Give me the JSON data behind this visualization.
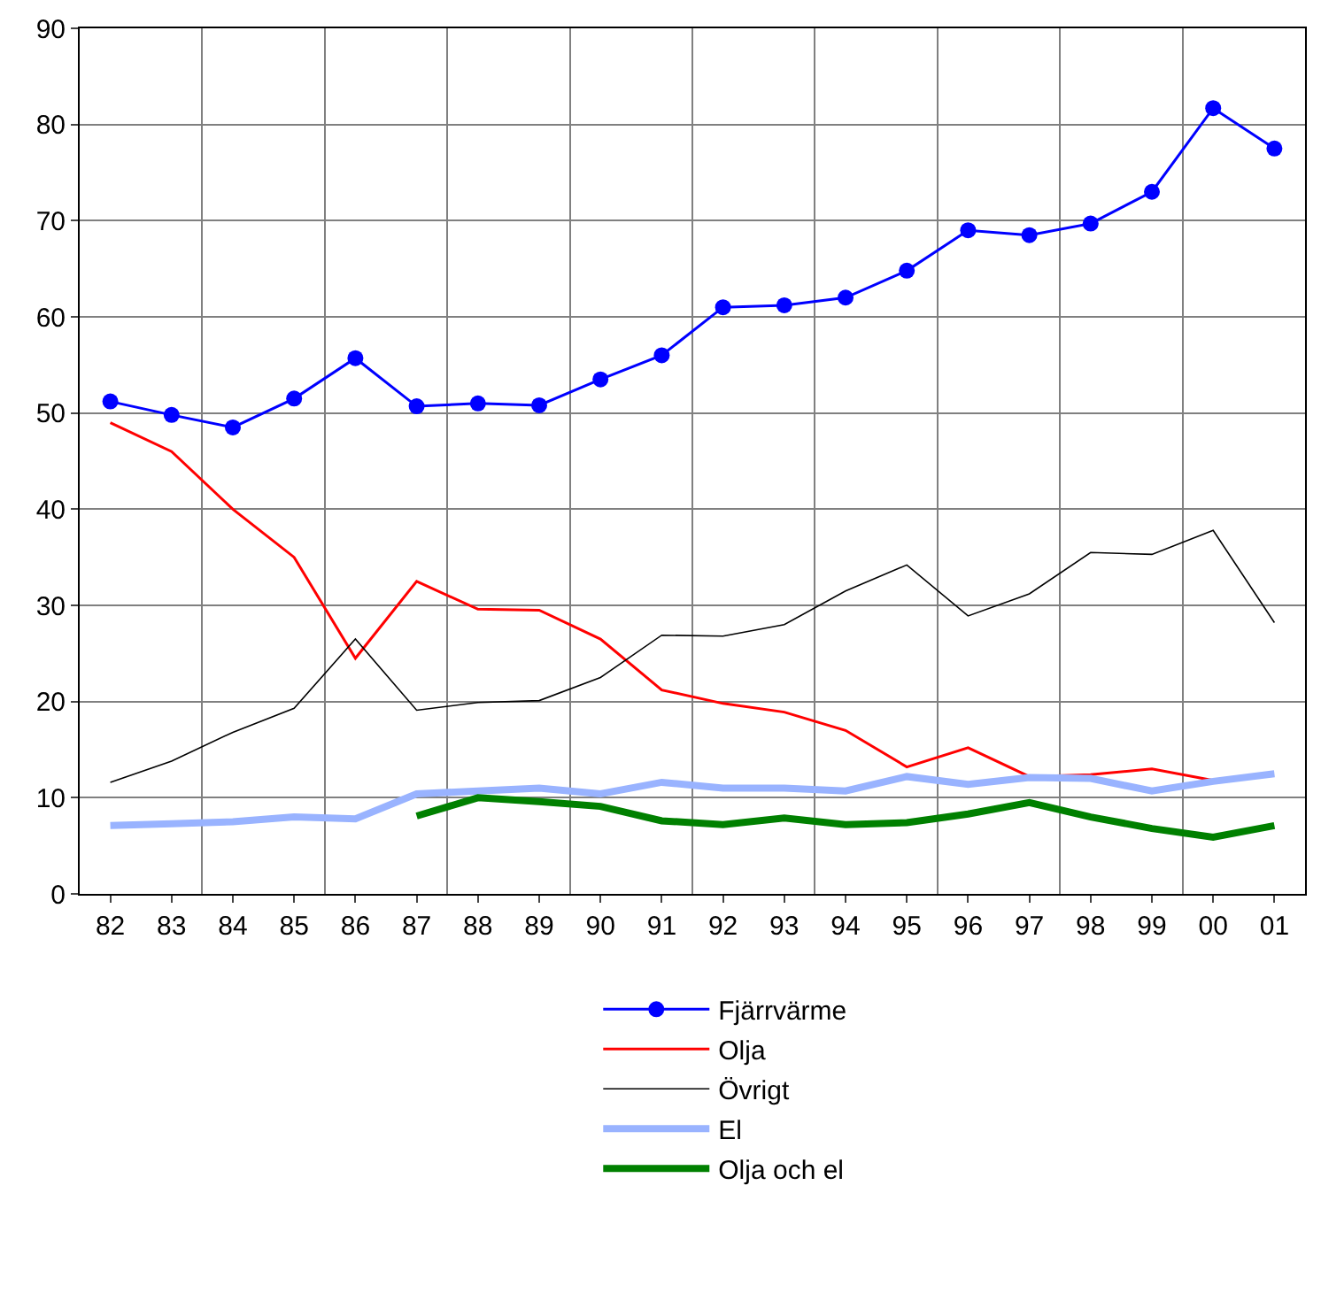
{
  "chart_data": {
    "type": "line",
    "categories": [
      "82",
      "83",
      "84",
      "85",
      "86",
      "87",
      "88",
      "89",
      "90",
      "91",
      "92",
      "93",
      "94",
      "95",
      "96",
      "97",
      "98",
      "99",
      "00",
      "01"
    ],
    "ylim": [
      0,
      90
    ],
    "yticks": [
      0,
      10,
      20,
      30,
      40,
      50,
      60,
      70,
      80,
      90
    ],
    "grid": true,
    "legend": "bottom",
    "series": [
      {
        "name": "Fjärrvärme",
        "color": "#0000ff",
        "marker": "circle",
        "values": [
          51.2,
          49.8,
          48.5,
          51.5,
          55.7,
          50.7,
          51.0,
          50.8,
          53.5,
          56.0,
          61.0,
          61.2,
          62.0,
          64.8,
          69.0,
          68.5,
          69.7,
          73.0,
          81.7,
          77.5
        ]
      },
      {
        "name": "Olja",
        "color": "#ff0000",
        "marker": "none",
        "values": [
          49,
          46,
          40,
          35,
          24.5,
          32.5,
          29.6,
          29.5,
          26.5,
          21.2,
          19.8,
          18.9,
          17.0,
          13.2,
          15.2,
          12.2,
          12.4,
          13.0,
          11.8,
          null
        ]
      },
      {
        "name": "Övrigt",
        "color": "#000000",
        "marker": "none",
        "values": [
          11.6,
          13.8,
          16.8,
          19.3,
          26.5,
          19.1,
          19.9,
          20.1,
          22.5,
          26.9,
          26.8,
          28.0,
          31.5,
          34.2,
          28.9,
          31.2,
          35.5,
          35.3,
          37.8,
          28.2
        ]
      },
      {
        "name": "El",
        "color": "#99b3ff",
        "marker": "none",
        "values": [
          7.1,
          7.3,
          7.5,
          8.0,
          7.8,
          10.4,
          10.7,
          11.0,
          10.4,
          11.6,
          11.0,
          11.0,
          10.7,
          12.2,
          11.4,
          12.1,
          12.0,
          10.7,
          11.7,
          12.5
        ]
      },
      {
        "name": "Olja och el",
        "color": "#008000",
        "marker": "none",
        "values": [
          null,
          null,
          null,
          null,
          null,
          8.1,
          10.0,
          9.6,
          9.1,
          7.6,
          7.2,
          7.9,
          7.2,
          7.4,
          8.3,
          9.5,
          8.0,
          6.8,
          5.9,
          7.1
        ]
      }
    ]
  }
}
